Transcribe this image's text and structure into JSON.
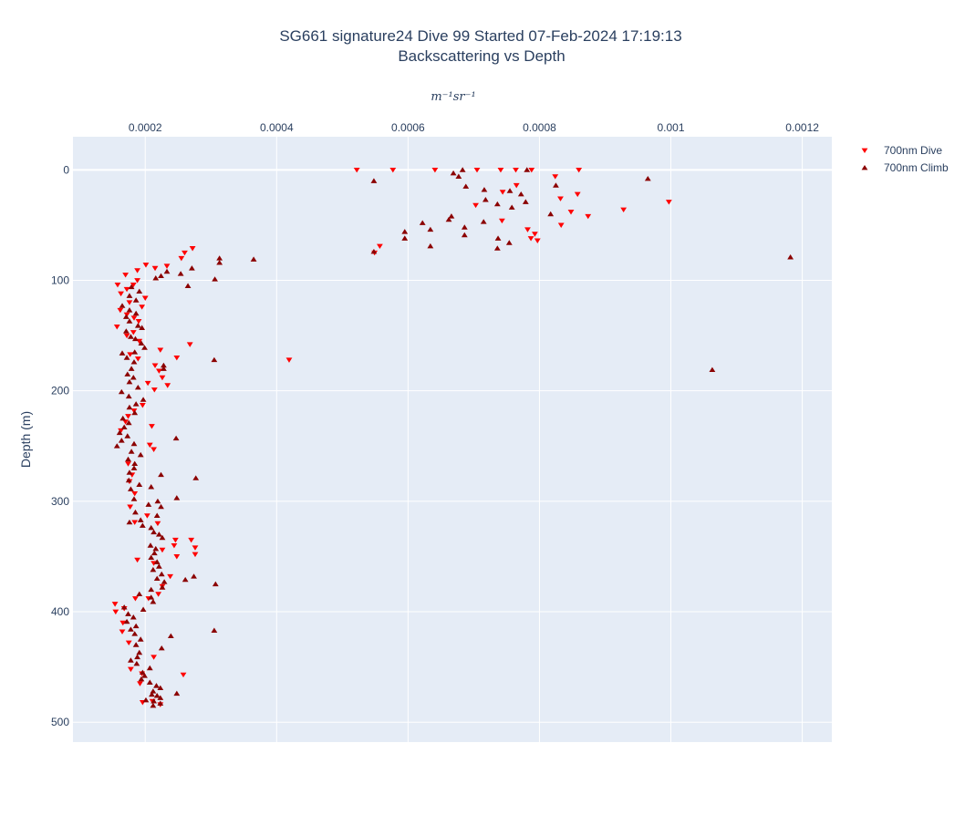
{
  "chart_data": {
    "type": "scatter",
    "title_line1": "SG661 signature24 Dive 99 Started 07-Feb-2024 17:19:13",
    "title_line2": "Backscattering vs Depth",
    "xlabel": "m⁻¹sr⁻¹",
    "ylabel": "Depth (m)",
    "xlim": [
      9e-05,
      0.001245
    ],
    "ylim": [
      518,
      -30
    ],
    "x_axis_position": "top",
    "grid": true,
    "legend_position": "top-right",
    "x_ticks": [
      0.0002,
      0.0004,
      0.0006,
      0.0008,
      0.001,
      0.0012
    ],
    "x_tick_labels": [
      "0.0002",
      "0.0004",
      "0.0006",
      "0.0008",
      "0.001",
      "0.0012"
    ],
    "y_ticks": [
      0,
      100,
      200,
      300,
      400,
      500
    ],
    "y_tick_labels": [
      "0",
      "100",
      "200",
      "300",
      "400",
      "500"
    ],
    "colors": {
      "plot_bg": "#e5ecf6",
      "grid": "#ffffff",
      "dive": "#ff0000",
      "climb": "#8b0000"
    },
    "series": [
      {
        "name": "700nm Dive",
        "marker": "triangle-down",
        "color": "#ff0000",
        "points": [
          [
            0.000522,
            0
          ],
          [
            0.000577,
            0
          ],
          [
            0.000641,
            0
          ],
          [
            0.000705,
            0
          ],
          [
            0.000741,
            0
          ],
          [
            0.000764,
            0
          ],
          [
            0.000788,
            0
          ],
          [
            0.00086,
            0
          ],
          [
            0.000824,
            6
          ],
          [
            0.000765,
            14
          ],
          [
            0.000744,
            20
          ],
          [
            0.000832,
            26
          ],
          [
            0.000858,
            22
          ],
          [
            0.000703,
            32
          ],
          [
            0.000743,
            46
          ],
          [
            0.000848,
            38
          ],
          [
            0.000874,
            42
          ],
          [
            0.000928,
            36
          ],
          [
            0.000997,
            29
          ],
          [
            0.000833,
            50
          ],
          [
            0.000782,
            54
          ],
          [
            0.000793,
            58
          ],
          [
            0.000797,
            64
          ],
          [
            0.000787,
            62
          ],
          [
            0.000557,
            69
          ],
          [
            0.000549,
            75
          ],
          [
            0.000272,
            71
          ],
          [
            0.00026,
            75
          ],
          [
            0.000255,
            80
          ],
          [
            0.000233,
            87
          ],
          [
            0.000215,
            89
          ],
          [
            0.000201,
            86
          ],
          [
            0.000188,
            91
          ],
          [
            0.00017,
            95
          ],
          [
            0.000188,
            100
          ],
          [
            0.000182,
            104
          ],
          [
            0.000158,
            104
          ],
          [
            0.000172,
            108
          ],
          [
            0.000163,
            112
          ],
          [
            0.0002,
            116
          ],
          [
            0.000176,
            120
          ],
          [
            0.000195,
            124
          ],
          [
            0.000162,
            127
          ],
          [
            0.000172,
            131
          ],
          [
            0.000183,
            134
          ],
          [
            0.00019,
            137
          ],
          [
            0.000157,
            142
          ],
          [
            0.000182,
            147
          ],
          [
            0.000172,
            150
          ],
          [
            0.000191,
            155
          ],
          [
            0.000268,
            158
          ],
          [
            0.000223,
            163
          ],
          [
            0.000177,
            167
          ],
          [
            0.000189,
            171
          ],
          [
            0.000248,
            170
          ],
          [
            0.000215,
            177
          ],
          [
            0.000221,
            182
          ],
          [
            0.000226,
            188
          ],
          [
            0.000204,
            193
          ],
          [
            0.000234,
            195
          ],
          [
            0.000214,
            199
          ],
          [
            0.000196,
            213
          ],
          [
            0.000183,
            218
          ],
          [
            0.000174,
            223
          ],
          [
            0.00017,
            228
          ],
          [
            0.000163,
            236
          ],
          [
            0.00021,
            232
          ],
          [
            0.000207,
            249
          ],
          [
            0.000213,
            253
          ],
          [
            0.000419,
            172
          ],
          [
            0.000174,
            266
          ],
          [
            0.00018,
            276
          ],
          [
            0.000176,
            282
          ],
          [
            0.000184,
            293
          ],
          [
            0.000177,
            305
          ],
          [
            0.000203,
            313
          ],
          [
            0.000184,
            319
          ],
          [
            0.000219,
            320
          ],
          [
            0.000246,
            335
          ],
          [
            0.00027,
            335
          ],
          [
            0.000244,
            340
          ],
          [
            0.000276,
            342
          ],
          [
            0.000276,
            348
          ],
          [
            0.000248,
            350
          ],
          [
            0.000226,
            344
          ],
          [
            0.000188,
            353
          ],
          [
            0.000213,
            356
          ],
          [
            0.000238,
            368
          ],
          [
            0.000226,
            377
          ],
          [
            0.00022,
            384
          ],
          [
            0.000205,
            388
          ],
          [
            0.000185,
            388
          ],
          [
            0.000154,
            393
          ],
          [
            0.000168,
            397
          ],
          [
            0.000155,
            400
          ],
          [
            0.000166,
            410
          ],
          [
            0.000165,
            418
          ],
          [
            0.000175,
            428
          ],
          [
            0.000213,
            441
          ],
          [
            0.000178,
            452
          ],
          [
            0.000195,
            456
          ],
          [
            0.000258,
            457
          ],
          [
            0.000192,
            465
          ],
          [
            0.000211,
            481
          ],
          [
            0.000223,
            484
          ],
          [
            0.000196,
            482
          ]
        ]
      },
      {
        "name": "700nm Climb",
        "marker": "triangle-up",
        "color": "#8b0000",
        "points": [
          [
            0.000683,
            0
          ],
          [
            0.000781,
            0
          ],
          [
            0.000669,
            3
          ],
          [
            0.000677,
            6
          ],
          [
            0.000548,
            10
          ],
          [
            0.000965,
            8
          ],
          [
            0.000825,
            14
          ],
          [
            0.000688,
            15
          ],
          [
            0.000716,
            18
          ],
          [
            0.000755,
            19
          ],
          [
            0.000772,
            22
          ],
          [
            0.000718,
            27
          ],
          [
            0.000779,
            29
          ],
          [
            0.000736,
            31
          ],
          [
            0.000758,
            34
          ],
          [
            0.000817,
            40
          ],
          [
            0.000666,
            42
          ],
          [
            0.000662,
            45
          ],
          [
            0.000715,
            47
          ],
          [
            0.000622,
            48
          ],
          [
            0.000686,
            52
          ],
          [
            0.000634,
            54
          ],
          [
            0.000595,
            56
          ],
          [
            0.000686,
            59
          ],
          [
            0.000737,
            62
          ],
          [
            0.000595,
            62
          ],
          [
            0.000754,
            66
          ],
          [
            0.000634,
            69
          ],
          [
            0.000736,
            71
          ],
          [
            0.000548,
            74
          ],
          [
            0.001182,
            79
          ],
          [
            0.000365,
            81
          ],
          [
            0.000313,
            80
          ],
          [
            0.000313,
            84
          ],
          [
            0.000271,
            89
          ],
          [
            0.000254,
            94
          ],
          [
            0.000233,
            92
          ],
          [
            0.000224,
            96
          ],
          [
            0.000216,
            98
          ],
          [
            0.000306,
            99
          ],
          [
            0.000265,
            105
          ],
          [
            0.000179,
            106
          ],
          [
            0.000191,
            110
          ],
          [
            0.000176,
            114
          ],
          [
            0.000186,
            118
          ],
          [
            0.000165,
            123
          ],
          [
            0.000176,
            127
          ],
          [
            0.000186,
            130
          ],
          [
            0.000171,
            133
          ],
          [
            0.000176,
            137
          ],
          [
            0.000189,
            141
          ],
          [
            0.000195,
            143
          ],
          [
            0.000171,
            146
          ],
          [
            0.000178,
            151
          ],
          [
            0.000185,
            153
          ],
          [
            0.000194,
            157
          ],
          [
            0.000199,
            161
          ],
          [
            0.000184,
            165
          ],
          [
            0.000165,
            166
          ],
          [
            0.000172,
            170
          ],
          [
            0.000183,
            174
          ],
          [
            0.000228,
            177
          ],
          [
            0.000228,
            180
          ],
          [
            0.000305,
            172
          ],
          [
            0.000179,
            180
          ],
          [
            0.000173,
            185
          ],
          [
            0.000182,
            188
          ],
          [
            0.000176,
            192
          ],
          [
            0.000189,
            197
          ],
          [
            0.000164,
            201
          ],
          [
            0.000175,
            205
          ],
          [
            0.000197,
            208
          ],
          [
            0.000186,
            212
          ],
          [
            0.000176,
            215
          ],
          [
            0.000184,
            220
          ],
          [
            0.000166,
            225
          ],
          [
            0.000175,
            229
          ],
          [
            0.000168,
            233
          ],
          [
            0.000161,
            238
          ],
          [
            0.000173,
            241
          ],
          [
            0.000164,
            245
          ],
          [
            0.000183,
            248
          ],
          [
            0.000157,
            250
          ],
          [
            0.000247,
            243
          ],
          [
            0.000179,
            255
          ],
          [
            0.000193,
            258
          ],
          [
            0.000174,
            262
          ],
          [
            0.000184,
            266
          ],
          [
            0.000183,
            270
          ],
          [
            0.000176,
            274
          ],
          [
            0.000224,
            276
          ],
          [
            0.000277,
            279
          ],
          [
            0.000175,
            281
          ],
          [
            0.000191,
            285
          ],
          [
            0.000209,
            287
          ],
          [
            0.000178,
            289
          ],
          [
            0.000248,
            297
          ],
          [
            0.000183,
            298
          ],
          [
            0.000219,
            300
          ],
          [
            0.000205,
            303
          ],
          [
            0.000224,
            305
          ],
          [
            0.000185,
            310
          ],
          [
            0.000218,
            313
          ],
          [
            0.000193,
            317
          ],
          [
            0.000176,
            319
          ],
          [
            0.000196,
            322
          ],
          [
            0.000209,
            324
          ],
          [
            0.000213,
            328
          ],
          [
            0.000221,
            330
          ],
          [
            0.000226,
            333
          ],
          [
            0.000208,
            340
          ],
          [
            0.000216,
            343
          ],
          [
            0.000214,
            347
          ],
          [
            0.000209,
            351
          ],
          [
            0.000218,
            355
          ],
          [
            0.000221,
            359
          ],
          [
            0.000212,
            362
          ],
          [
            0.000225,
            366
          ],
          [
            0.000218,
            370
          ],
          [
            0.000229,
            373
          ],
          [
            0.000261,
            371
          ],
          [
            0.000274,
            368
          ],
          [
            0.000307,
            375
          ],
          [
            0.000226,
            378
          ],
          [
            0.000209,
            380
          ],
          [
            0.000191,
            384
          ],
          [
            0.000209,
            387
          ],
          [
            0.000212,
            391
          ],
          [
            0.000168,
            396
          ],
          [
            0.000197,
            398
          ],
          [
            0.000174,
            402
          ],
          [
            0.000182,
            405
          ],
          [
            0.000172,
            409
          ],
          [
            0.000186,
            413
          ],
          [
            0.000178,
            416
          ],
          [
            0.000305,
            417
          ],
          [
            0.000184,
            420
          ],
          [
            0.000239,
            422
          ],
          [
            0.000193,
            425
          ],
          [
            0.000186,
            430
          ],
          [
            0.000225,
            433
          ],
          [
            0.000191,
            437
          ],
          [
            0.000188,
            441
          ],
          [
            0.000178,
            444
          ],
          [
            0.000187,
            447
          ],
          [
            0.000207,
            451
          ],
          [
            0.000196,
            455
          ],
          [
            0.000199,
            458
          ],
          [
            0.000194,
            461
          ],
          [
            0.000207,
            464
          ],
          [
            0.000217,
            467
          ],
          [
            0.000223,
            469
          ],
          [
            0.000212,
            472
          ],
          [
            0.00021,
            475
          ],
          [
            0.000248,
            474
          ],
          [
            0.000223,
            478
          ],
          [
            0.000213,
            481
          ],
          [
            0.000223,
            483
          ],
          [
            0.000201,
            480
          ],
          [
            0.001063,
            181
          ],
          [
            0.000218,
            476
          ],
          [
            0.000212,
            485
          ]
        ]
      }
    ]
  }
}
